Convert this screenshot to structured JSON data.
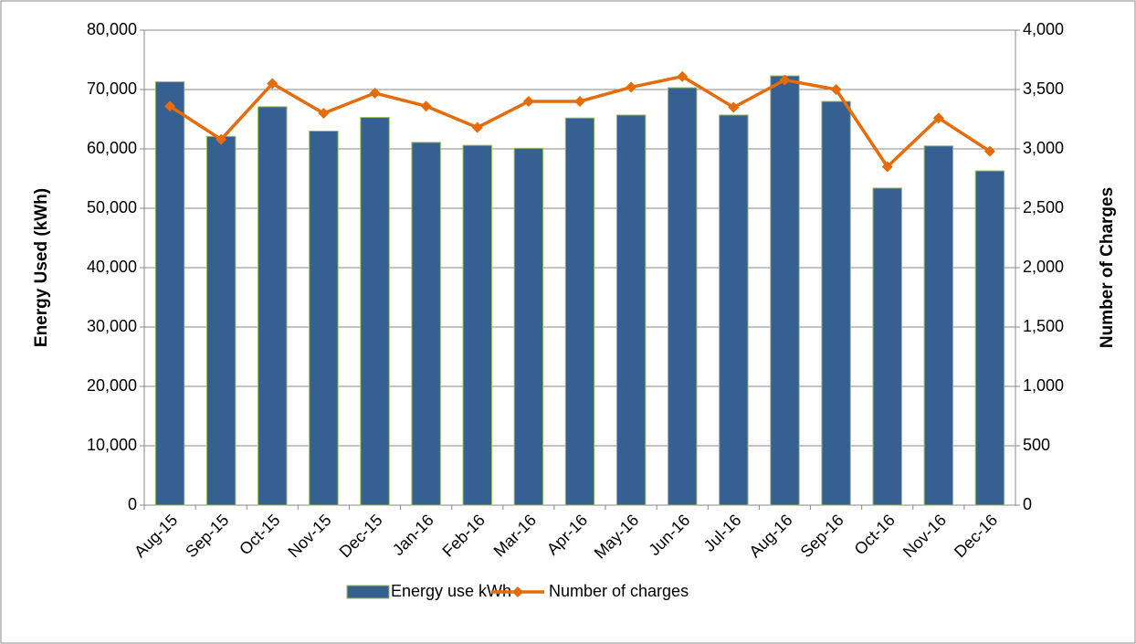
{
  "chart_data": {
    "type": "bar_line",
    "y_label": "Energy Used (kWh)",
    "y2_label": "Number of Charges",
    "categories": [
      "Aug-15",
      "Sep-15",
      "Oct-15",
      "Nov-15",
      "Dec-15",
      "Jan-16",
      "Feb-16",
      "Mar-16",
      "Apr-16",
      "May-16",
      "Jun-16",
      "Jul-16",
      "Aug-16",
      "Sep-16",
      "Oct-16",
      "Nov-16",
      "Dec-16"
    ],
    "series": [
      {
        "name": "Energy use kWh",
        "type": "bar",
        "color": "#366092",
        "values": [
          71300,
          62100,
          67100,
          63000,
          65300,
          61100,
          60600,
          60100,
          65200,
          65700,
          70300,
          65700,
          72300,
          68000,
          53400,
          60500,
          56300
        ]
      },
      {
        "name": "Number of charges",
        "type": "line",
        "axis": "y2",
        "color": "#e46c0a",
        "values": [
          3360,
          3080,
          3550,
          3300,
          3470,
          3360,
          3180,
          3400,
          3400,
          3520,
          3610,
          3350,
          3580,
          3500,
          2850,
          3260,
          2980
        ]
      }
    ],
    "ylim": [
      0,
      80000
    ],
    "yticks": [
      0,
      {
        "value": 10000,
        "label": "10,000"
      },
      {
        "value": 20000,
        "label": "20,000"
      },
      {
        "value": 30000,
        "label": "30,000"
      },
      {
        "value": 40000,
        "label": "40,000"
      },
      {
        "value": 50000,
        "label": "50,000"
      },
      {
        "value": 60000,
        "label": "60,000"
      },
      {
        "value": 70000,
        "label": "70,000"
      },
      {
        "value": 80000,
        "label": "80,000"
      }
    ],
    "y2lim": [
      0,
      4000
    ],
    "y2ticks": [
      0,
      500,
      {
        "value": 1000,
        "label": "1,000"
      },
      {
        "value": 1500,
        "label": "1,500"
      },
      {
        "value": 2000,
        "label": "2,000"
      },
      {
        "value": 2500,
        "label": "2,500"
      },
      {
        "value": 3000,
        "label": "3,000"
      },
      {
        "value": 3500,
        "label": "3,500"
      },
      {
        "value": 4000,
        "label": "4,000"
      }
    ],
    "grid": true
  }
}
